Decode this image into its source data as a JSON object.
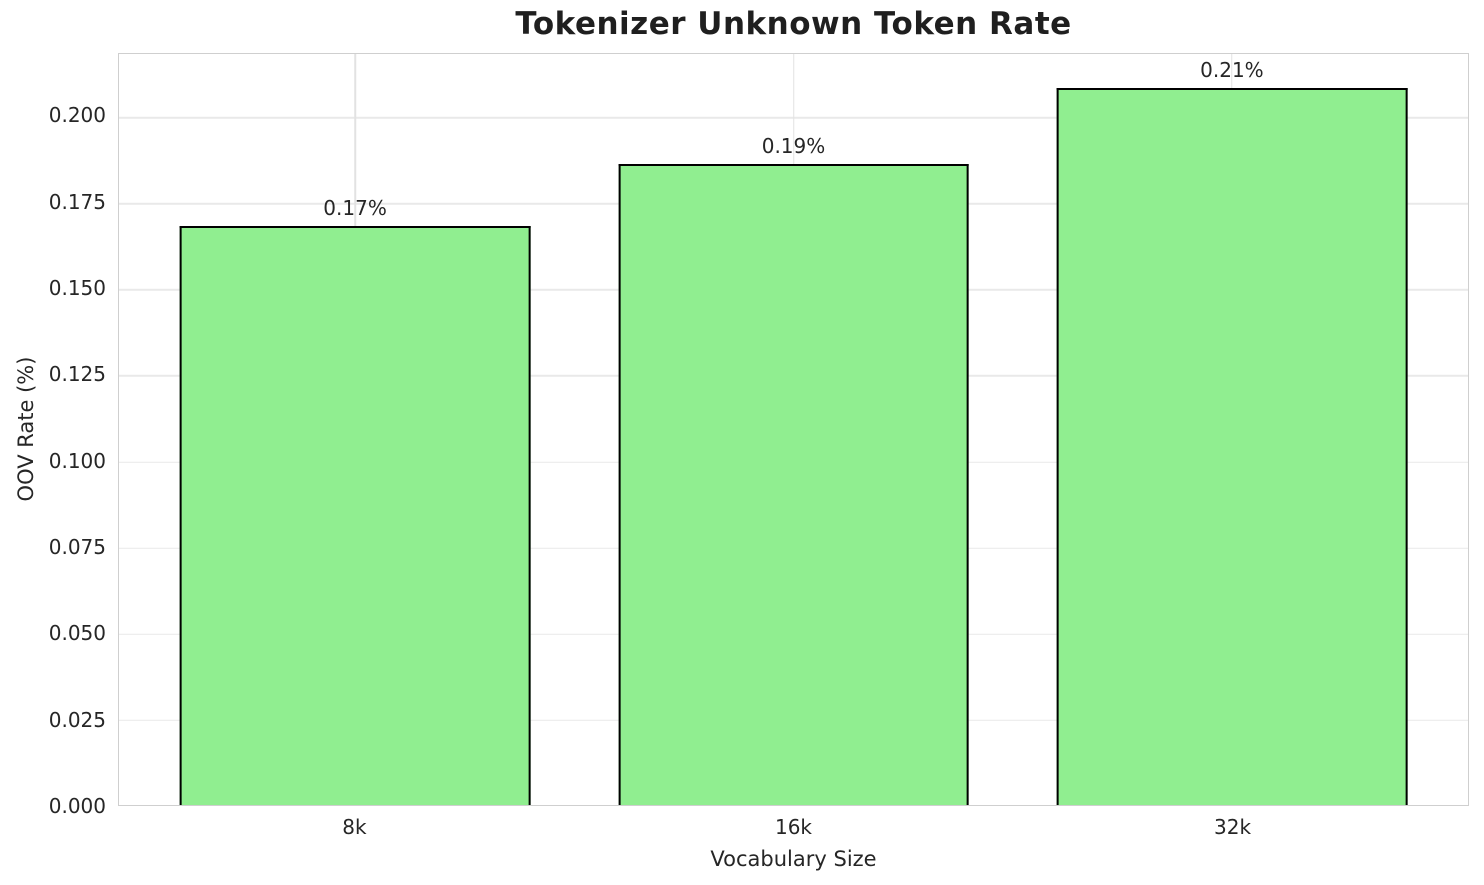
{
  "chart_data": {
    "type": "bar",
    "title": "Tokenizer Unknown Token Rate",
    "xlabel": "Vocabulary Size",
    "ylabel": "OOV Rate (%)",
    "categories": [
      "8k",
      "16k",
      "32k"
    ],
    "values": [
      0.168,
      0.186,
      0.208
    ],
    "bar_labels": [
      "0.17%",
      "0.19%",
      "0.21%"
    ],
    "yticks": [
      0.0,
      0.025,
      0.05,
      0.075,
      0.1,
      0.125,
      0.15,
      0.175,
      0.2
    ],
    "ytick_labels": [
      "0.000",
      "0.025",
      "0.050",
      "0.075",
      "0.100",
      "0.125",
      "0.150",
      "0.175",
      "0.200"
    ],
    "ylim": [
      0,
      0.218
    ],
    "grid": true,
    "legend": null,
    "bar_color": "#90EE90",
    "bar_edge_color": "#000000",
    "grid_color": "#e9e9e9",
    "spine_color": "#cfcfcf",
    "title_color": "#1f1f1f",
    "text_color": "#262626",
    "background_color": "#ffffff"
  }
}
